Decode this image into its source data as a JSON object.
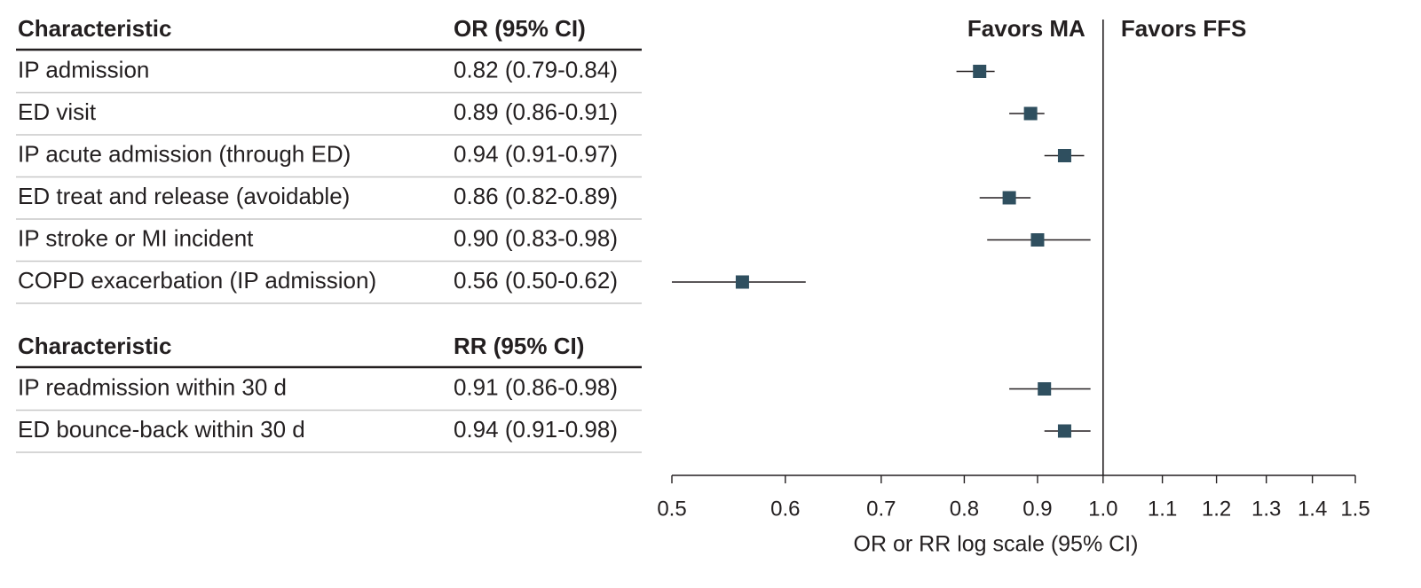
{
  "chart_data": {
    "type": "forest",
    "scale": "log",
    "xlim": [
      0.5,
      1.5
    ],
    "reference_line": 1.0,
    "marker_color": "#2f4f5f",
    "rule_color": "#c8c8c8",
    "x_ticks": [
      "0.5",
      "0.6",
      "0.7",
      "0.8",
      "0.9",
      "1.0",
      "1.1",
      "1.2",
      "1.3",
      "1.4",
      "1.5"
    ],
    "x_tick_values": [
      0.5,
      0.6,
      0.7,
      0.8,
      0.9,
      1.0,
      1.1,
      1.2,
      1.3,
      1.4,
      1.5
    ],
    "xlabel": "OR or RR log scale (95% CI)",
    "favors_left": "Favors MA",
    "favors_right": "Favors FFS",
    "groups": [
      {
        "header_label": "Characteristic",
        "header_stat": "OR (95% CI)",
        "rows": [
          {
            "label": "IP admission",
            "stat": "0.82 (0.79-0.84)",
            "estimate": 0.82,
            "lower": 0.79,
            "upper": 0.84
          },
          {
            "label": "ED visit",
            "stat": "0.89 (0.86-0.91)",
            "estimate": 0.89,
            "lower": 0.86,
            "upper": 0.91
          },
          {
            "label": "IP acute admission (through ED)",
            "stat": "0.94 (0.91-0.97)",
            "estimate": 0.94,
            "lower": 0.91,
            "upper": 0.97
          },
          {
            "label": "ED treat and release (avoidable)",
            "stat": "0.86 (0.82-0.89)",
            "estimate": 0.86,
            "lower": 0.82,
            "upper": 0.89
          },
          {
            "label": "IP stroke or MI incident",
            "stat": "0.90 (0.83-0.98)",
            "estimate": 0.9,
            "lower": 0.83,
            "upper": 0.98
          },
          {
            "label": "COPD exacerbation (IP admission)",
            "stat": "0.56 (0.50-0.62)",
            "estimate": 0.56,
            "lower": 0.5,
            "upper": 0.62
          }
        ]
      },
      {
        "header_label": "Characteristic",
        "header_stat": "RR (95% CI)",
        "rows": [
          {
            "label": "IP readmission within 30 d",
            "stat": "0.91 (0.86-0.98)",
            "estimate": 0.91,
            "lower": 0.86,
            "upper": 0.98
          },
          {
            "label": "ED bounce-back within 30 d",
            "stat": "0.94 (0.91-0.98)",
            "estimate": 0.94,
            "lower": 0.91,
            "upper": 0.98
          }
        ]
      }
    ]
  }
}
